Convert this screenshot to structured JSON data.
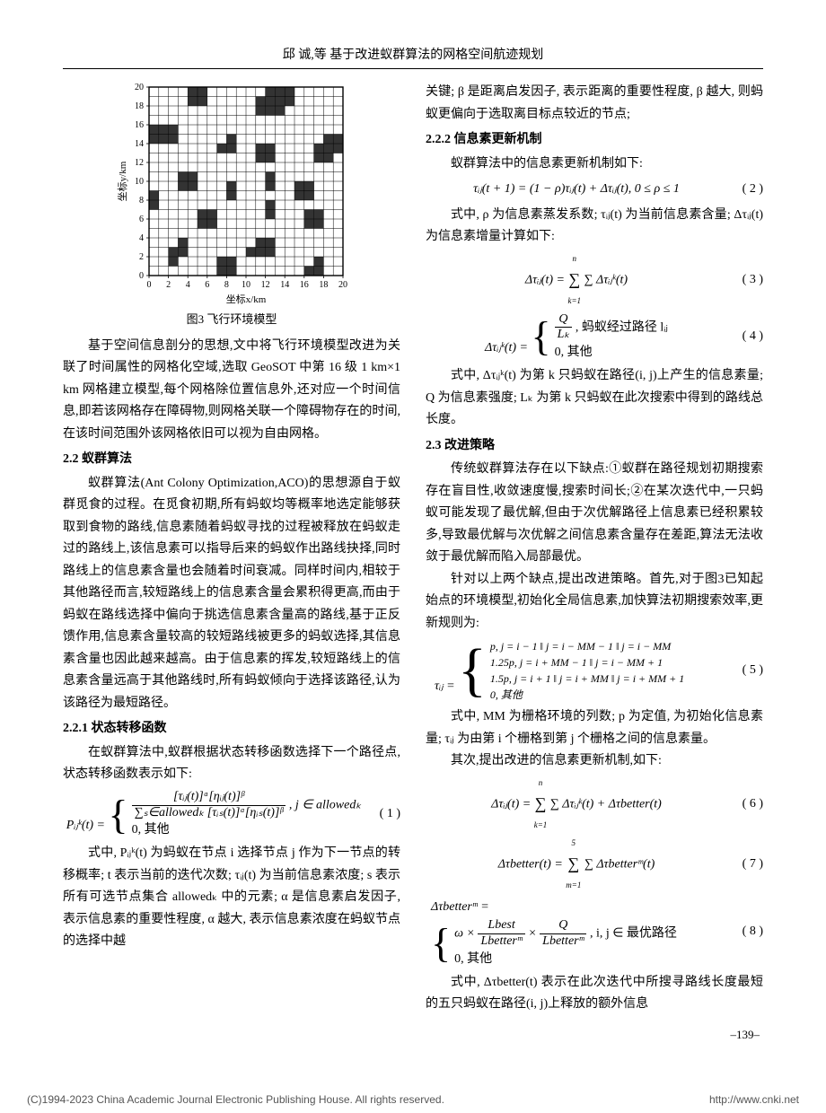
{
  "header": "邱  诚,等    基于改进蚁群算法的网格空间航迹规划",
  "figure3": {
    "caption": "图3  飞行环境模型",
    "x_label": "坐标x/km",
    "y_label": "坐标y/km",
    "grid_n": 20,
    "ticks": [
      0,
      2,
      4,
      6,
      8,
      10,
      12,
      14,
      16,
      18,
      20
    ],
    "cell_color": "#333333",
    "line_color": "#000000",
    "bg_color": "#ffffff",
    "filled": [
      [
        4,
        19
      ],
      [
        5,
        19
      ],
      [
        12,
        19
      ],
      [
        13,
        19
      ],
      [
        14,
        19
      ],
      [
        4,
        18
      ],
      [
        5,
        18
      ],
      [
        11,
        18
      ],
      [
        12,
        18
      ],
      [
        13,
        18
      ],
      [
        14,
        18
      ],
      [
        11,
        17
      ],
      [
        12,
        17
      ],
      [
        13,
        17
      ],
      [
        0,
        15
      ],
      [
        1,
        15
      ],
      [
        2,
        15
      ],
      [
        0,
        14
      ],
      [
        1,
        14
      ],
      [
        2,
        14
      ],
      [
        8,
        14
      ],
      [
        18,
        14
      ],
      [
        19,
        14
      ],
      [
        7,
        13
      ],
      [
        8,
        13
      ],
      [
        11,
        13
      ],
      [
        12,
        13
      ],
      [
        17,
        13
      ],
      [
        18,
        13
      ],
      [
        19,
        13
      ],
      [
        11,
        12
      ],
      [
        12,
        12
      ],
      [
        17,
        12
      ],
      [
        18,
        12
      ],
      [
        3,
        10
      ],
      [
        4,
        10
      ],
      [
        12,
        10
      ],
      [
        3,
        9
      ],
      [
        4,
        9
      ],
      [
        8,
        9
      ],
      [
        12,
        9
      ],
      [
        15,
        9
      ],
      [
        16,
        9
      ],
      [
        0,
        8
      ],
      [
        8,
        8
      ],
      [
        15,
        8
      ],
      [
        16,
        8
      ],
      [
        0,
        7
      ],
      [
        12,
        7
      ],
      [
        5,
        6
      ],
      [
        6,
        6
      ],
      [
        12,
        6
      ],
      [
        16,
        6
      ],
      [
        17,
        6
      ],
      [
        5,
        5
      ],
      [
        6,
        5
      ],
      [
        16,
        5
      ],
      [
        17,
        5
      ],
      [
        3,
        3
      ],
      [
        11,
        3
      ],
      [
        12,
        3
      ],
      [
        2,
        2
      ],
      [
        3,
        2
      ],
      [
        10,
        2
      ],
      [
        11,
        2
      ],
      [
        12,
        2
      ],
      [
        2,
        1
      ],
      [
        7,
        1
      ],
      [
        8,
        1
      ],
      [
        17,
        1
      ],
      [
        7,
        0
      ],
      [
        8,
        0
      ],
      [
        16,
        0
      ],
      [
        17,
        0
      ]
    ]
  },
  "left_col": {
    "p_intro": "基于空间信息剖分的思想,文中将飞行环境模型改进为关联了时间属性的网格化空域,选取 GeoSOT 中第 16 级 1 km×1 km 网格建立模型,每个网格除位置信息外,还对应一个时间信息,即若该网格存在障碍物,则网格关联一个障碍物存在的时间,在该时间范围外该网格依旧可以视为自由网格。",
    "h22": "2.2  蚁群算法",
    "p22": "蚁群算法(Ant Colony Optimization,ACO)的思想源自于蚁群觅食的过程。在觅食初期,所有蚂蚁均等概率地选定能够获取到食物的路线,信息素随着蚂蚁寻找的过程被释放在蚂蚁走过的路线上,该信息素可以指导后来的蚂蚁作出路线抉择,同时路线上的信息素含量也会随着时间衰减。同样时间内,相较于其他路径而言,较短路线上的信息素含量会累积得更高,而由于蚂蚁在路线选择中偏向于挑选信息素含量高的路线,基于正反馈作用,信息素含量较高的较短路线被更多的蚂蚁选择,其信息素含量也因此越来越高。由于信息素的挥发,较短路线上的信息素含量远高于其他路线时,所有蚂蚁倾向于选择该路径,认为该路径为最短路径。",
    "h221": "2.2.1  状态转移函数",
    "p221a": "在蚁群算法中,蚁群根据状态转移函数选择下一个路径点,状态转移函数表示如下:",
    "eq1_line1": "[τᵢⱼ(t)]ᵅ[ηᵢⱼ(t)]ᵝ",
    "eq1_line1_den": "∑ₛ∈allowedₖ [τᵢₛ(t)]ᵅ[ηᵢₛ(t)]ᵝ",
    "eq1_cond1": ", j ∈ allowedₖ",
    "eq1_line2": "0,  其他",
    "eq1_lhs": "Pᵢⱼᵏ(t) =",
    "eq1_num": "( 1 )",
    "p221b": "式中, Pᵢⱼᵏ(t) 为蚂蚁在节点 i 选择节点 j 作为下一节点的转移概率; t 表示当前的迭代次数; τᵢⱼ(t) 为当前信息素浓度; s 表示所有可选节点集合 allowedₖ 中的元素; α 是信息素启发因子, 表示信息素的重要性程度, α 越大, 表示信息素浓度在蚂蚁节点的选择中越"
  },
  "right_col": {
    "p_top": "关键; β 是距离启发因子, 表示距离的重要性程度, β 越大, 则蚂蚁更偏向于选取离目标点较近的节点;",
    "h222": "2.2.2  信息素更新机制",
    "p222a": "蚁群算法中的信息素更新机制如下:",
    "eq2": "τᵢⱼ(t + 1) = (1 − ρ)τᵢⱼ(t) + Δτᵢⱼ(t),  0 ≤ ρ ≤ 1",
    "eq2_num": "( 2 )",
    "p222b": "式中, ρ 为信息素蒸发系数; τᵢⱼ(t) 为当前信息素含量; Δτᵢⱼ(t) 为信息素增量计算如下:",
    "eq3_lhs": "Δτᵢⱼ(t) = ",
    "eq3_body": "∑ Δτᵢⱼᵏ(t)",
    "eq3_sub": "k=1",
    "eq3_sup": "n",
    "eq3_num": "( 3 )",
    "eq4_lhs": "Δτᵢⱼᵏ(t) =",
    "eq4_line1_num": "Q",
    "eq4_line1_den": "Lₖ",
    "eq4_cond1": ",  蚂蚁经过路径 lᵢⱼ",
    "eq4_line2": "0,  其他",
    "eq4_num": "( 4 )",
    "p222c": "式中, Δτᵢⱼᵏ(t) 为第 k 只蚂蚁在路径(i, j)上产生的信息素量; Q 为信息素强度; Lₖ 为第 k 只蚂蚁在此次搜索中得到的路线总长度。",
    "h23": "2.3  改进策略",
    "p23a": "传统蚁群算法存在以下缺点:①蚁群在路径规划初期搜索存在盲目性,收敛速度慢,搜索时间长;②在某次迭代中,一只蚂蚁可能发现了最优解,但由于次优解路径上信息素已经积累较多,导致最优解与次优解之间信息素含量存在差距,算法无法收敛于最优解而陷入局部最优。",
    "p23b": "针对以上两个缺点,提出改进策略。首先,对于图3已知起始点的环境模型,初始化全局信息素,加快算法初期搜索效率,更新规则为:",
    "eq5_lhs": "τᵢⱼ =",
    "eq5_l1": "p, j = i − 1 ‖ j = i − MM − 1 ‖ j = i − MM",
    "eq5_l2": "1.25p, j = i + MM − 1 ‖ j = i − MM + 1",
    "eq5_l3": "1.5p, j = i + 1 ‖ j = i + MM ‖ j = i + MM + 1",
    "eq5_l4": "0,  其他",
    "eq5_num": "( 5 )",
    "p23c": "式中, MM 为栅格环境的列数; p 为定值, 为初始化信息素量; τᵢⱼ 为由第 i 个栅格到第 j 个栅格之间的信息素量。",
    "p23d": "其次,提出改进的信息素更新机制,如下:",
    "eq6_lhs": "Δτᵢⱼ(t) = ",
    "eq6_body": "∑ Δτᵢⱼᵏ(t) + Δτbetter(t)",
    "eq6_sub": "k=1",
    "eq6_sup": "n",
    "eq6_num": "( 6 )",
    "eq7_lhs": "Δτbetter(t) = ",
    "eq7_body": "∑ Δτbetterᵐ(t)",
    "eq7_sub": "m=1",
    "eq7_sup": "5",
    "eq7_num": "( 7 )",
    "eq8_lhs": "Δτbetterᵐ =",
    "eq8_l1a": "ω × ",
    "eq8_l1_num1": "Lbest",
    "eq8_l1_den1": "Lbetterᵐ",
    "eq8_l1_mid": " × ",
    "eq8_l1_num2": "Q",
    "eq8_l1_den2": "Lbetterᵐ",
    "eq8_cond": ",  i, j ∈ 最优路径",
    "eq8_l2": "0,  其他",
    "eq8_num": "( 8 )",
    "p23e": "式中, Δτbetter(t) 表示在此次迭代中所搜寻路线长度最短的五只蚂蚁在路径(i, j)上释放的额外信息"
  },
  "page_num": "–139–",
  "copyright": "(C)1994-2023 China Academic Journal Electronic Publishing House. All rights reserved.",
  "url": "http://www.cnki.net"
}
